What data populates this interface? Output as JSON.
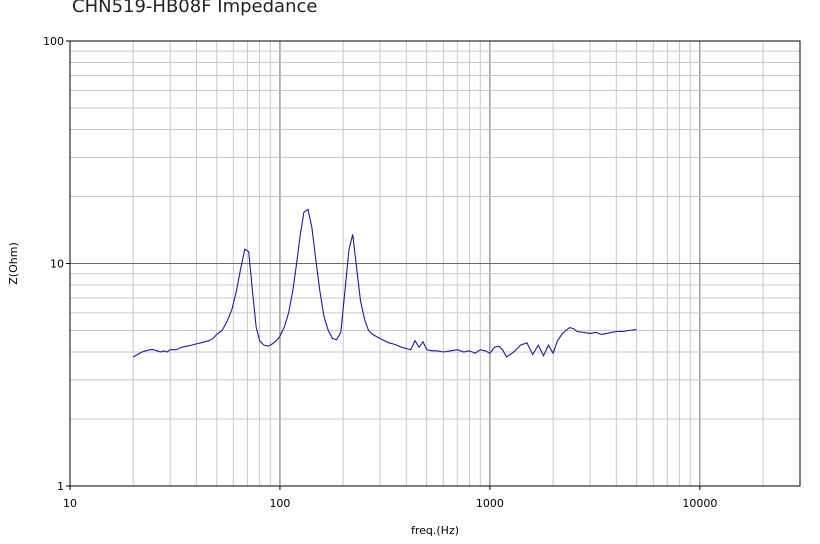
{
  "chart_data": {
    "type": "line",
    "title": "CHN519-HB08F Impedance",
    "xlabel": "freq.(Hz)",
    "ylabel": "Z(Ohm)",
    "x_scale": "log",
    "y_scale": "log",
    "xlim": [
      10,
      30000
    ],
    "ylim": [
      1,
      100
    ],
    "x_ticks": [
      "10",
      "100",
      "1000",
      "10000"
    ],
    "y_ticks": [
      "1",
      "10",
      "100"
    ],
    "grid": true,
    "series": [
      {
        "color": "#1a1aa8",
        "x": [
          20,
          21,
          22,
          23,
          24,
          25,
          26,
          27,
          28,
          29,
          30,
          32,
          34,
          36,
          38,
          40,
          42,
          44,
          46,
          48,
          50,
          53,
          56,
          59,
          62,
          65,
          68,
          71,
          74,
          77,
          80,
          84,
          88,
          92,
          96,
          100,
          105,
          110,
          115,
          120,
          125,
          130,
          136,
          142,
          148,
          155,
          162,
          170,
          178,
          186,
          195,
          204,
          213,
          222,
          232,
          242,
          253,
          264,
          276,
          288,
          300,
          315,
          330,
          345,
          360,
          380,
          400,
          420,
          440,
          460,
          480,
          500,
          530,
          560,
          600,
          650,
          700,
          750,
          800,
          850,
          900,
          950,
          1000,
          1050,
          1100,
          1150,
          1200,
          1300,
          1400,
          1500,
          1600,
          1700,
          1800,
          1900,
          2000,
          2100,
          2200,
          2300,
          2400,
          2500,
          2600,
          2800,
          3000,
          3200,
          3400,
          3600,
          3800,
          4000,
          4300,
          4600,
          5000
        ],
        "y": [
          3.8,
          3.9,
          4.0,
          4.05,
          4.1,
          4.1,
          4.05,
          4.0,
          4.05,
          4.0,
          4.1,
          4.1,
          4.2,
          4.25,
          4.3,
          4.35,
          4.4,
          4.45,
          4.5,
          4.6,
          4.8,
          5.0,
          5.5,
          6.2,
          7.5,
          9.5,
          11.6,
          11.3,
          7.5,
          5.2,
          4.5,
          4.3,
          4.25,
          4.35,
          4.5,
          4.7,
          5.2,
          6.0,
          7.5,
          10.0,
          13.5,
          17.0,
          17.5,
          14.5,
          10.5,
          7.5,
          5.8,
          5.0,
          4.6,
          4.55,
          4.9,
          7.5,
          11.5,
          13.5,
          9.5,
          6.8,
          5.6,
          5.0,
          4.8,
          4.7,
          4.6,
          4.5,
          4.4,
          4.35,
          4.3,
          4.2,
          4.15,
          4.1,
          4.5,
          4.2,
          4.45,
          4.1,
          4.05,
          4.05,
          4.0,
          4.05,
          4.1,
          4.0,
          4.05,
          3.95,
          4.1,
          4.05,
          3.95,
          4.2,
          4.25,
          4.1,
          3.8,
          4.0,
          4.3,
          4.4,
          3.9,
          4.3,
          3.85,
          4.3,
          3.95,
          4.5,
          4.8,
          5.0,
          5.15,
          5.1,
          4.95,
          4.9,
          4.85,
          4.9,
          4.8,
          4.85,
          4.9,
          4.95,
          4.95,
          5.0,
          5.05
        ]
      }
    ]
  }
}
